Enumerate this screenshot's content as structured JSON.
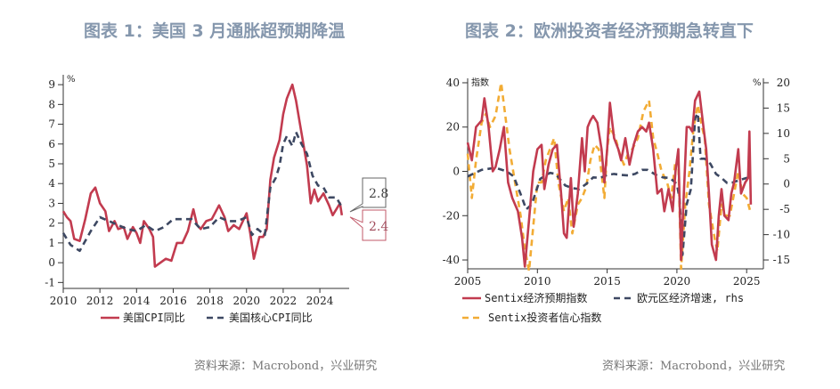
{
  "colors": {
    "cpi": "#c23b4f",
    "core": "#3d4862",
    "econ": "#c23b4f",
    "gdp": "#3d4862",
    "inv": "#f2ac35",
    "title": "#8597ad"
  },
  "chart_data": [
    {
      "type": "line",
      "title": "图表 1：美国 3 月通胀超预期降温",
      "ylabel": "%",
      "xlim": [
        2010,
        2025.6
      ],
      "ylim": [
        -1.3,
        9.5
      ],
      "xticks": [
        2010,
        2012,
        2014,
        2016,
        2018,
        2020,
        2022,
        2024
      ],
      "yticks": [
        -1,
        0,
        1,
        2,
        3,
        4,
        5,
        6,
        7,
        8,
        9
      ],
      "legend": "bottom",
      "source": "资料来源：Macrobond，兴业研究",
      "annotations": [
        {
          "label": "2.8",
          "series": "美国核心CPI同比"
        },
        {
          "label": "2.4",
          "series": "美国CPI同比"
        }
      ],
      "series": [
        {
          "name": "美国CPI同比",
          "style": "solid",
          "x": [
            2010.0,
            2010.2,
            2010.4,
            2010.6,
            2010.9,
            2011.2,
            2011.5,
            2011.75,
            2012.0,
            2012.3,
            2012.5,
            2012.8,
            2013.0,
            2013.3,
            2013.5,
            2013.8,
            2014.0,
            2014.2,
            2014.4,
            2014.7,
            2014.9,
            2015.0,
            2015.3,
            2015.6,
            2015.9,
            2016.2,
            2016.5,
            2016.8,
            2017.1,
            2017.3,
            2017.5,
            2017.8,
            2018.1,
            2018.5,
            2018.8,
            2019.0,
            2019.3,
            2019.6,
            2019.9,
            2020.0,
            2020.2,
            2020.4,
            2020.7,
            2020.9,
            2021.1,
            2021.3,
            2021.5,
            2021.8,
            2022.0,
            2022.2,
            2022.5,
            2022.7,
            2022.9,
            2023.1,
            2023.3,
            2023.5,
            2023.7,
            2023.9,
            2024.2,
            2024.5,
            2024.7,
            2024.9,
            2025.1,
            2025.2
          ],
          "y": [
            2.6,
            2.3,
            2.1,
            1.2,
            1.1,
            2.2,
            3.5,
            3.8,
            3.0,
            2.6,
            1.6,
            2.1,
            1.7,
            1.8,
            1.2,
            1.8,
            1.5,
            1.0,
            2.1,
            1.7,
            1.3,
            -0.2,
            0.0,
            0.2,
            0.1,
            1.0,
            1.0,
            1.6,
            2.7,
            1.9,
            1.7,
            2.1,
            2.2,
            2.9,
            2.3,
            1.6,
            1.9,
            1.7,
            2.3,
            2.5,
            1.5,
            0.2,
            1.3,
            1.3,
            1.7,
            4.2,
            5.3,
            6.2,
            7.5,
            8.3,
            9.0,
            8.2,
            7.1,
            6.0,
            4.9,
            3.0,
            3.7,
            3.1,
            3.5,
            2.9,
            2.4,
            2.7,
            3.0,
            2.4
          ]
        },
        {
          "name": "美国核心CPI同比",
          "style": "dashed",
          "x": [
            2010.0,
            2010.4,
            2010.9,
            2011.5,
            2012.0,
            2012.5,
            2013.0,
            2013.5,
            2014.0,
            2014.5,
            2015.0,
            2015.5,
            2016.0,
            2016.5,
            2017.0,
            2017.5,
            2018.0,
            2018.5,
            2019.0,
            2019.5,
            2020.0,
            2020.3,
            2020.6,
            2021.0,
            2021.3,
            2021.6,
            2021.8,
            2022.0,
            2022.2,
            2022.5,
            2022.7,
            2023.0,
            2023.3,
            2023.6,
            2023.9,
            2024.2,
            2024.5,
            2024.9,
            2025.2
          ],
          "y": [
            1.5,
            0.9,
            0.6,
            1.6,
            2.3,
            2.1,
            1.9,
            1.7,
            1.6,
            1.9,
            1.6,
            1.8,
            2.2,
            2.2,
            2.2,
            1.7,
            1.8,
            2.3,
            2.1,
            2.1,
            2.3,
            1.4,
            1.7,
            1.4,
            3.8,
            4.3,
            4.9,
            6.0,
            6.4,
            5.9,
            6.6,
            6.0,
            5.5,
            4.4,
            3.9,
            3.8,
            3.3,
            3.3,
            2.8
          ]
        }
      ]
    },
    {
      "type": "line",
      "title": "图表 2：欧洲投资者经济预期急转直下",
      "ylabel": "指数",
      "y2label": "%",
      "xlim": [
        2005,
        2026.2
      ],
      "ylim": [
        -44,
        42
      ],
      "y2lim": [
        -16.75,
        20.875
      ],
      "xticks": [
        2005,
        2010,
        2015,
        2020,
        2025
      ],
      "yticks": [
        -40,
        -20,
        0,
        20,
        40
      ],
      "y2ticks": [
        -15,
        -10,
        -5,
        0,
        5,
        10,
        15,
        20
      ],
      "legend": "bottom",
      "source": "资料来源：Macrobond，兴业研究",
      "series": [
        {
          "name": "Sentix经济预期指数",
          "style": "solid",
          "axis": "left",
          "x": [
            2005.0,
            2005.3,
            2005.6,
            2006.0,
            2006.2,
            2006.5,
            2006.8,
            2007.0,
            2007.3,
            2007.6,
            2007.9,
            2008.2,
            2008.6,
            2008.9,
            2009.1,
            2009.4,
            2009.7,
            2010.0,
            2010.3,
            2010.5,
            2010.8,
            2011.1,
            2011.4,
            2011.7,
            2011.9,
            2012.1,
            2012.4,
            2012.6,
            2012.9,
            2013.2,
            2013.4,
            2013.6,
            2013.8,
            2014.0,
            2014.3,
            2014.6,
            2014.8,
            2015.0,
            2015.2,
            2015.5,
            2015.8,
            2016.0,
            2016.3,
            2016.6,
            2016.9,
            2017.2,
            2017.5,
            2017.8,
            2018.0,
            2018.3,
            2018.6,
            2018.9,
            2019.1,
            2019.4,
            2019.7,
            2019.9,
            2020.1,
            2020.3,
            2020.5,
            2020.7,
            2020.9,
            2021.1,
            2021.3,
            2021.6,
            2021.9,
            2022.1,
            2022.3,
            2022.5,
            2022.8,
            2023.0,
            2023.2,
            2023.4,
            2023.7,
            2023.9,
            2024.1,
            2024.4,
            2024.6,
            2024.9,
            2025.1,
            2025.2,
            2025.3
          ],
          "y": [
            13,
            5,
            20,
            23,
            33,
            20,
            0,
            2,
            10,
            20,
            -5,
            -12,
            -18,
            -30,
            -43,
            -22,
            0,
            10,
            12,
            -8,
            3,
            10,
            12,
            -10,
            -28,
            -30,
            -3,
            -25,
            -10,
            15,
            0,
            20,
            23,
            25,
            22,
            10,
            -5,
            10,
            31,
            15,
            10,
            5,
            15,
            3,
            12,
            18,
            20,
            18,
            22,
            10,
            -10,
            -8,
            -18,
            -8,
            -18,
            0,
            10,
            -40,
            -10,
            20,
            20,
            18,
            32,
            36,
            20,
            10,
            -10,
            -33,
            -40,
            -20,
            -8,
            -20,
            -22,
            -10,
            -5,
            10,
            -10,
            -5,
            -3,
            18,
            -15
          ]
        },
        {
          "name": "欧元区经济增速, rhs",
          "style": "dashed",
          "axis": "right",
          "x": [
            2005.0,
            2006.0,
            2007.0,
            2007.8,
            2008.3,
            2008.8,
            2009.2,
            2009.6,
            2010.2,
            2010.9,
            2011.3,
            2012.0,
            2012.5,
            2013.0,
            2013.5,
            2014.0,
            2014.5,
            2015.0,
            2015.5,
            2016.0,
            2016.5,
            2017.0,
            2017.5,
            2017.9,
            2018.5,
            2019.0,
            2019.5,
            2020.0,
            2020.2,
            2020.4,
            2020.7,
            2021.0,
            2021.3,
            2021.5,
            2021.7,
            2022.0,
            2022.4,
            2022.8,
            2023.2,
            2023.6,
            2024.0,
            2024.5,
            2025.0,
            2025.3
          ],
          "y": [
            1.5,
            2.8,
            3.2,
            2.5,
            1.5,
            -2,
            -5,
            -4,
            1,
            2.2,
            2,
            -0.3,
            -0.8,
            -1,
            0,
            1.3,
            1.2,
            1.8,
            2,
            1.8,
            1.7,
            2,
            2.8,
            2.8,
            1.8,
            1.3,
            1.2,
            0,
            -3,
            -14,
            -4,
            -1,
            13,
            14,
            5,
            5,
            4,
            2,
            1.2,
            0.2,
            0.3,
            0.8,
            1.2,
            1.2
          ]
        },
        {
          "name": "Sentix投资者信心指数",
          "style": "dashed",
          "axis": "left",
          "x": [
            2005.0,
            2005.3,
            2005.6,
            2006.0,
            2006.3,
            2006.6,
            2007.0,
            2007.4,
            2007.7,
            2008.0,
            2008.4,
            2008.8,
            2009.1,
            2009.4,
            2009.7,
            2010.0,
            2010.3,
            2010.6,
            2010.9,
            2011.2,
            2011.5,
            2011.9,
            2012.2,
            2012.5,
            2012.9,
            2013.2,
            2013.5,
            2013.8,
            2014.1,
            2014.4,
            2014.8,
            2015.0,
            2015.2,
            2015.6,
            2015.9,
            2016.2,
            2016.5,
            2016.8,
            2017.2,
            2017.6,
            2018.0,
            2018.3,
            2018.6,
            2018.9,
            2019.3,
            2019.6,
            2019.9,
            2020.1,
            2020.3,
            2020.6,
            2020.9,
            2021.2,
            2021.5,
            2021.8,
            2022.0,
            2022.3,
            2022.7,
            2022.9,
            2023.2,
            2023.5,
            2023.8,
            2024.1,
            2024.4,
            2024.7,
            2025.0,
            2025.3
          ],
          "y": [
            8,
            -12,
            5,
            22,
            26,
            20,
            25,
            40,
            25,
            10,
            -5,
            -20,
            -35,
            -45,
            -25,
            -5,
            -5,
            5,
            10,
            15,
            -5,
            -18,
            -12,
            -28,
            -15,
            -12,
            -7,
            5,
            12,
            10,
            -12,
            10,
            20,
            15,
            8,
            3,
            8,
            10,
            15,
            27,
            32,
            15,
            8,
            0,
            -5,
            -12,
            5,
            5,
            -44,
            -15,
            0,
            20,
            30,
            20,
            15,
            -15,
            -30,
            -36,
            -15,
            -20,
            -20,
            -10,
            0,
            -10,
            -12,
            -19
          ]
        }
      ]
    }
  ]
}
